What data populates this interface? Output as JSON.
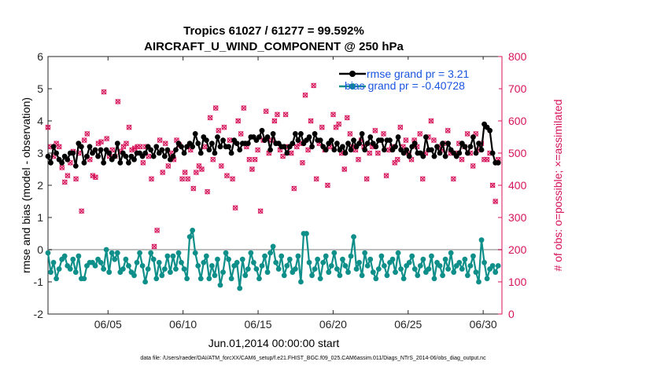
{
  "chart_data": {
    "type": "line",
    "title": "Tropics 61027 / 61277 = 99.592%",
    "subtitle": "AIRCRAFT_U_WIND_COMPONENT @ 250 hPa",
    "xlabel": "Jun.01,2014 00:00:00 start",
    "ylabel_left": "rmse and bias (model - observation)",
    "ylabel_right": "# of obs: o=possible; ×=assimilated",
    "footer": "data file: /Users/raeder/DAI/ATM_forcXX/CAM6_setup/f.e21.FHIST_BGC.f09_025.CAM6assim.011/Diags_NTrS_2014-06/obs_diag_output.nc",
    "x_tick_labels": [
      "06/05",
      "06/10",
      "06/15",
      "06/20",
      "06/25",
      "06/30"
    ],
    "x_tick_days": [
      5,
      10,
      15,
      20,
      25,
      30
    ],
    "xlim_days": [
      1.0,
      31.25
    ],
    "ylim_left": [
      -2,
      6
    ],
    "y_ticks_left": [
      "-2",
      "-1",
      "0",
      "1",
      "2",
      "3",
      "4",
      "5",
      "6"
    ],
    "ylim_right": [
      0,
      800
    ],
    "y_ticks_right": [
      "0",
      "100",
      "200",
      "300",
      "400",
      "500",
      "600",
      "700",
      "800"
    ],
    "colors": {
      "rmse": "#000000",
      "bias": "#0f8f8a",
      "obs": "#d6135a",
      "zero_line": "#bdbdbd",
      "legend_text": "#1a55e0"
    },
    "series": [
      {
        "name": "rmse grand pr = 3.21",
        "axis": "left",
        "values": [
          2.9,
          2.7,
          3.2,
          3.0,
          2.8,
          2.7,
          2.9,
          2.8,
          3.0,
          3.0,
          2.6,
          3.3,
          3.2,
          2.7,
          2.9,
          3.2,
          3.0,
          3.1,
          2.9,
          3.1,
          2.7,
          3.1,
          3.0,
          2.8,
          2.9,
          3.3,
          2.7,
          3.0,
          2.9,
          2.7,
          2.9,
          2.8,
          3.0,
          3.0,
          2.9,
          3.0,
          3.2,
          3.1,
          2.9,
          3.2,
          3.0,
          3.1,
          2.9,
          3.1,
          2.8,
          2.9,
          3.1,
          3.3,
          3.2,
          3.0,
          3.2,
          3.3,
          3.2,
          3.6,
          3.3,
          3.0,
          3.5,
          3.4,
          3.1,
          3.3,
          3.0,
          3.5,
          3.2,
          3.4,
          3.2,
          3.2,
          3.0,
          3.4,
          3.3,
          3.1,
          3.3,
          3.3,
          3.3,
          3.5,
          3.5,
          3.4,
          3.5,
          3.7,
          3.4,
          3.5,
          3.1,
          3.6,
          3.3,
          3.3,
          3.2,
          3.2,
          3.0,
          3.2,
          3.3,
          3.6,
          3.4,
          3.6,
          3.3,
          3.4,
          3.5,
          3.2,
          3.6,
          3.4,
          3.4,
          3.2,
          3.1,
          3.3,
          3.4,
          3.1,
          3.3,
          3.1,
          3.2,
          3.0,
          3.3,
          3.1,
          3.4,
          3.2,
          3.3,
          3.6,
          3.1,
          3.3,
          3.5,
          3.3,
          3.2,
          3.4,
          3.4,
          3.1,
          3.4,
          3.4,
          3.1,
          3.2,
          3.5,
          3.1,
          3.0,
          3.1,
          2.9,
          3.2,
          3.3,
          3.0,
          3.0,
          2.9,
          3.5,
          3.1,
          3.1,
          2.9,
          3.2,
          3.0,
          3.3,
          2.9,
          3.3,
          3.1,
          3.0,
          2.9,
          3.0,
          3.3,
          3.2,
          3.0,
          3.2,
          3.5,
          3.0,
          3.3,
          3.1,
          3.9,
          3.8,
          3.7,
          3.0,
          2.7,
          2.7
        ]
      },
      {
        "name": "bias grand pr = -0.40728",
        "axis": "left",
        "values": [
          -0.1,
          -0.7,
          -0.4,
          -0.9,
          -0.6,
          -0.3,
          -0.2,
          -0.5,
          -0.6,
          -0.3,
          -0.7,
          -0.2,
          -0.9,
          -0.9,
          -0.5,
          -0.4,
          -0.4,
          -0.5,
          -0.3,
          -0.4,
          -0.6,
          0.0,
          -0.7,
          -0.1,
          -0.3,
          -0.1,
          -0.7,
          -0.6,
          -0.3,
          -0.5,
          -0.7,
          -0.8,
          -0.4,
          -0.1,
          -0.5,
          -1.0,
          -0.6,
          -0.1,
          -0.3,
          -0.9,
          -0.4,
          -0.8,
          -0.6,
          -0.2,
          -0.7,
          -0.2,
          -0.6,
          -0.1,
          -0.4,
          -0.6,
          -0.9,
          0.4,
          0.6,
          -0.1,
          -0.5,
          -0.9,
          -0.4,
          -0.2,
          -0.9,
          -0.5,
          -0.8,
          -0.3,
          -1.1,
          -0.7,
          -0.1,
          -0.3,
          -0.9,
          -0.5,
          -0.4,
          -1.2,
          -0.3,
          -0.8,
          -0.6,
          -0.1,
          -0.4,
          -0.6,
          -0.9,
          -0.5,
          -0.2,
          -0.7,
          -0.1,
          0.1,
          -0.4,
          -0.6,
          -0.2,
          -0.8,
          -0.5,
          -0.3,
          -0.7,
          -0.6,
          -0.2,
          -1.0,
          0.5,
          0.5,
          -0.4,
          -0.8,
          -0.6,
          -0.3,
          -0.9,
          -0.4,
          -0.2,
          -0.7,
          -0.5,
          -0.1,
          -0.6,
          -0.8,
          -0.3,
          -0.5,
          -0.7,
          -0.2,
          0.4,
          -0.6,
          -0.4,
          -0.8,
          -0.1,
          -0.5,
          -0.3,
          -0.7,
          -0.9,
          -0.6,
          -0.2,
          -0.5,
          -0.8,
          -0.4,
          -0.3,
          -0.7,
          -0.1,
          -0.6,
          -0.9,
          -0.5,
          -0.4,
          -0.2,
          -0.6,
          -0.8,
          -0.5,
          -0.3,
          -0.7,
          -0.6,
          -0.2,
          -0.9,
          -0.4,
          -0.5,
          -0.8,
          -0.3,
          -0.6,
          -0.1,
          -0.7,
          -0.5,
          -0.4,
          -0.6,
          -0.3,
          -0.8,
          -0.5,
          -0.2,
          -0.7,
          -1.0,
          0.3,
          -0.4,
          -0.9,
          -0.6,
          -0.5,
          -0.7,
          -0.5
        ]
      },
      {
        "name": "# of obs (possible / assimilated)",
        "axis": "right",
        "values": [
          580,
          520,
          490,
          530,
          520,
          455,
          410,
          430,
          470,
          505,
          420,
          500,
          320,
          540,
          560,
          480,
          430,
          425,
          530,
          535,
          690,
          545,
          490,
          510,
          490,
          660,
          505,
          520,
          530,
          580,
          510,
          515,
          520,
          520,
          470,
          520,
          490,
          420,
          210,
          260,
          540,
          440,
          530,
          460,
          500,
          480,
          540,
          525,
          420,
          440,
          420,
          510,
          390,
          440,
          460,
          450,
          520,
          380,
          610,
          480,
          640,
          570,
          460,
          580,
          430,
          540,
          420,
          330,
          600,
          560,
          640,
          520,
          480,
          450,
          480,
          510,
          320,
          540,
          630,
          500,
          540,
          600,
          620,
          510,
          490,
          620,
          520,
          500,
          390,
          520,
          530,
          470,
          680,
          510,
          600,
          710,
          420,
          530,
          580,
          510,
          400,
          520,
          620,
          580,
          590,
          500,
          450,
          610,
          560,
          520,
          510,
          480,
          540,
          520,
          420,
          500,
          520,
          570,
          500,
          540,
          560,
          430,
          510,
          520,
          470,
          480,
          580,
          520,
          540,
          500,
          480,
          540,
          520,
          560,
          420,
          500,
          550,
          600,
          540,
          750,
          520,
          510,
          530,
          570,
          500,
          420,
          500,
          530,
          480,
          520,
          560,
          500,
          460,
          560,
          510,
          530,
          480,
          480,
          500,
          400,
          350,
          480
        ]
      }
    ],
    "legend": [
      "rmse grand pr = 3.21",
      "bias grand pr = -0.40728"
    ],
    "legend_position": "top-right",
    "grid": false
  }
}
